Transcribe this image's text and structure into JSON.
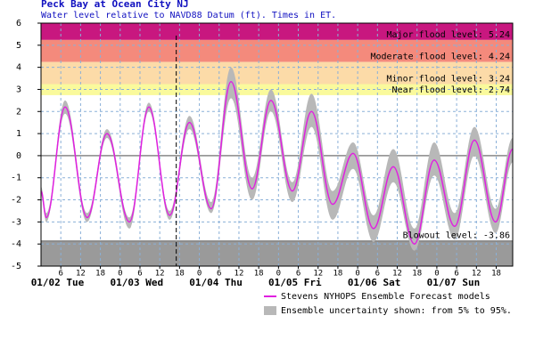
{
  "chart_data": {
    "type": "tide",
    "title": "Peck Bay at Ocean City NJ",
    "subtitle": "Water level relative to NAVD88 Datum (ft). Times in ET.",
    "x": [
      0,
      1.6,
      7.3,
      14,
      20,
      26.8,
      32.7,
      39,
      45,
      51.6,
      57.6,
      64,
      69.7,
      76.2,
      82,
      88.4,
      94.6,
      100.8,
      106.8,
      113.2,
      119.2,
      125.4,
      131.4,
      137.8,
      143
    ],
    "series": [
      {
        "name": "Stevens NYHOPS Ensemble Forecast models",
        "color": "#e020e0",
        "values": [
          -1.6,
          -2.8,
          2.2,
          -2.8,
          1.0,
          -3.0,
          2.2,
          -2.7,
          1.5,
          -2.4,
          3.35,
          -1.5,
          2.5,
          -1.6,
          2.0,
          -2.2,
          0.1,
          -3.3,
          -0.5,
          -4.0,
          -0.2,
          -3.2,
          0.7,
          -3.0,
          0.3
        ]
      }
    ],
    "band": {
      "name": "Ensemble uncertainty shown: from 5% to 95%.",
      "color": "#b8b8b8",
      "low": [
        -1.8,
        -3.0,
        1.9,
        -3.0,
        0.8,
        -3.3,
        2.0,
        -2.9,
        1.2,
        -2.6,
        2.6,
        -2.0,
        2.0,
        -2.1,
        1.3,
        -2.9,
        -0.6,
        -3.9,
        -1.2,
        -4.3,
        -0.9,
        -3.8,
        0.0,
        -3.5,
        -0.3
      ],
      "high": [
        -1.4,
        -2.6,
        2.5,
        -2.6,
        1.2,
        -2.8,
        2.4,
        -2.5,
        1.8,
        -2.1,
        4.0,
        -1.0,
        3.0,
        -1.2,
        2.8,
        -1.6,
        0.6,
        -2.7,
        0.3,
        -3.3,
        0.6,
        -2.6,
        1.3,
        -2.4,
        0.8
      ]
    },
    "flood_levels": [
      {
        "label": "Major flood level: 5.24",
        "value": 5.24,
        "color": "#c8177f"
      },
      {
        "label": "Moderate flood level: 4.24",
        "value": 4.24,
        "color": "#f48a7c"
      },
      {
        "label": "Minor flood level: 3.24",
        "value": 3.24,
        "color": "#fcdba8"
      },
      {
        "label": "Near flood level: 2.74",
        "value": 2.74,
        "color": "#fafa9c"
      }
    ],
    "blowout": {
      "label": "Blowout level: -3.86",
      "value": -3.86,
      "color": "#9a9a9a"
    },
    "forecast_start": 41,
    "xlim": [
      0,
      143
    ],
    "ylim": [
      -5,
      6
    ],
    "yticks": [
      -5,
      -4,
      -3,
      -2,
      -1,
      0,
      1,
      2,
      3,
      4,
      5,
      6
    ],
    "xticks": [
      6,
      12,
      18,
      {
        "value": 24,
        "label": "0"
      },
      {
        "value": 30,
        "label": "6"
      },
      {
        "value": 36,
        "label": "12"
      },
      {
        "value": 42,
        "label": "18"
      },
      {
        "value": 48,
        "label": "0"
      },
      {
        "value": 54,
        "label": "6"
      },
      {
        "value": 60,
        "label": "12"
      },
      {
        "value": 66,
        "label": "18"
      },
      {
        "value": 72,
        "label": "0"
      },
      {
        "value": 78,
        "label": "6"
      },
      {
        "value": 84,
        "label": "12"
      },
      {
        "value": 90,
        "label": "18"
      },
      {
        "value": 96,
        "label": "0"
      },
      {
        "value": 102,
        "label": "6"
      },
      {
        "value": 108,
        "label": "12"
      },
      {
        "value": 114,
        "label": "18"
      },
      {
        "value": 120,
        "label": "0"
      },
      {
        "value": 126,
        "label": "6"
      },
      {
        "value": 132,
        "label": "12"
      },
      {
        "value": 138,
        "label": "18"
      }
    ],
    "day_labels": [
      "01/02 Tue",
      "01/03 Wed",
      "01/04 Thu",
      "01/05 Fri",
      "01/06 Sat",
      "01/07 Sun"
    ],
    "grid": true
  }
}
